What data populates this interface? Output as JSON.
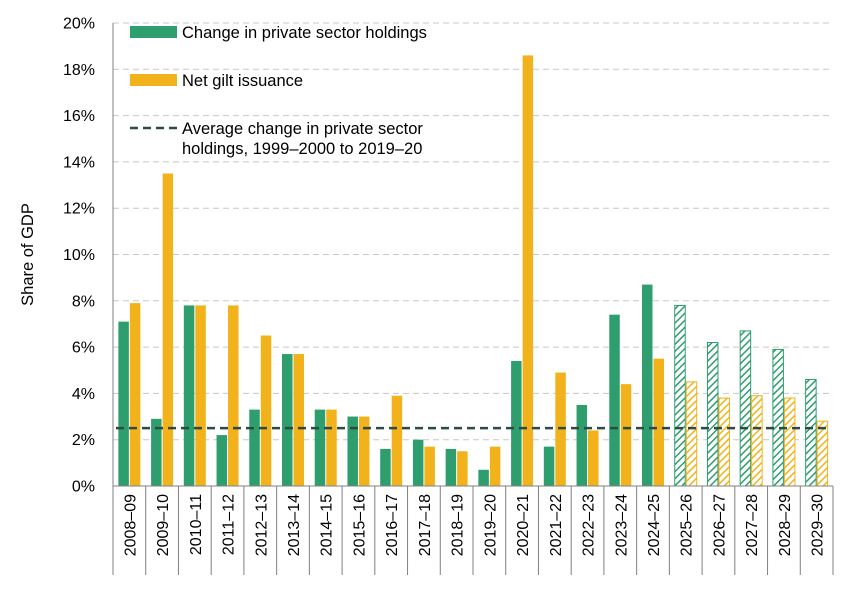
{
  "chart_data": {
    "type": "bar",
    "title": "",
    "xlabel": "",
    "ylabel": "Share of GDP",
    "ylim": [
      0,
      20
    ],
    "yticks": [
      "0%",
      "2%",
      "4%",
      "6%",
      "8%",
      "10%",
      "12%",
      "14%",
      "16%",
      "18%",
      "20%"
    ],
    "grid": true,
    "legend_position": "top-left",
    "categories": [
      "2008–09",
      "2009–10",
      "2010–11",
      "2011–12",
      "2012–13",
      "2013–14",
      "2014–15",
      "2015–16",
      "2016–17",
      "2017–18",
      "2018–19",
      "2019–20",
      "2020–21",
      "2021–22",
      "2022–23",
      "2023–24",
      "2024–25",
      "2025–26",
      "2026–27",
      "2027–28",
      "2028–29",
      "2029–30"
    ],
    "forecast_from_index": 17,
    "series": [
      {
        "name": "Change in private sector holdings",
        "color": "#2e9e6e",
        "values": [
          7.1,
          2.9,
          7.8,
          2.2,
          3.3,
          5.7,
          3.3,
          3.0,
          1.6,
          2.0,
          1.6,
          0.7,
          5.4,
          1.7,
          3.5,
          7.4,
          8.7,
          7.8,
          6.2,
          6.7,
          5.9,
          4.6
        ]
      },
      {
        "name": "Net gilt issuance",
        "color": "#f2b21c",
        "values": [
          7.9,
          13.5,
          7.8,
          7.8,
          6.5,
          5.7,
          3.3,
          3.0,
          3.9,
          1.7,
          1.5,
          1.7,
          18.6,
          4.9,
          2.4,
          4.4,
          5.5,
          4.5,
          3.8,
          3.9,
          3.8,
          2.8
        ]
      }
    ],
    "reference_line": {
      "name": "Average change in private sector holdings, 1999–2000 to 2019–20",
      "name_lines": [
        "Average change in private sector",
        "holdings, 1999–2000 to 2019–20"
      ],
      "value": 2.5,
      "color": "#2e4a45",
      "style": "dashed"
    }
  }
}
